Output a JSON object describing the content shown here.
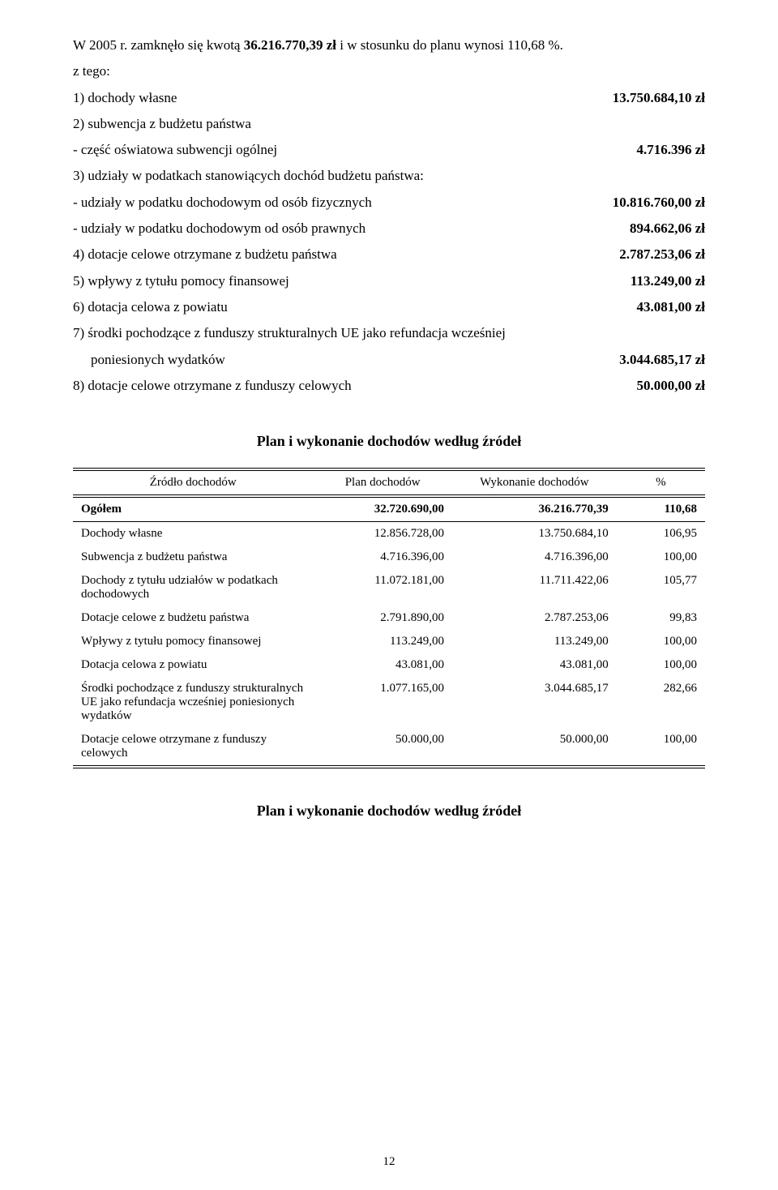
{
  "intro": {
    "line1_pre": "W 2005 r. zamknęło się kwotą ",
    "line1_bold": "36.216.770,39 zł",
    "line1_post": " i w stosunku do planu wynosi 110,68 %.",
    "line2": "z tego:"
  },
  "items": {
    "d1": {
      "label": "1) dochody własne",
      "value_bold": "13.750.684,10 zł"
    },
    "d2": {
      "label": "2) subwencja z budżetu państwa"
    },
    "d2a": {
      "label": "-   część oświatowa subwencji ogólnej",
      "value_bold": "4.716.396 zł"
    },
    "d3": {
      "label": "3) udziały w podatkach stanowiących dochód budżetu państwa:"
    },
    "d3a": {
      "label": "-   udziały w podatku dochodowym od osób fizycznych",
      "value_bold": "10.816.760,00 zł"
    },
    "d3b": {
      "label": "-   udziały w podatku dochodowym od osób prawnych",
      "value_bold": "894.662,06 zł"
    },
    "d4": {
      "label": "4) dotacje celowe otrzymane z budżetu państwa",
      "value_bold": "2.787.253,06 zł"
    },
    "d5": {
      "label": "5) wpływy z tytułu pomocy finansowej",
      "value_bold": "113.249,00 zł"
    },
    "d6": {
      "label": "6) dotacja celowa z powiatu",
      "value_bold": "43.081,00 zł"
    },
    "d7a": {
      "label": "7) środki pochodzące z funduszy strukturalnych UE jako refundacja wcześniej"
    },
    "d7b": {
      "label": "poniesionych wydatków",
      "value_bold": "3.044.685,17 zł"
    },
    "d8": {
      "label": "8) dotacje celowe otrzymane z funduszy celowych",
      "value_bold": "50.000,00 zł"
    }
  },
  "section_title": "Plan i wykonanie dochodów według źródeł",
  "table": {
    "headers": {
      "c1": "Źródło dochodów",
      "c2": "Plan dochodów",
      "c3": "Wykonanie dochodów",
      "c4": "%"
    },
    "total": {
      "label": "Ogółem",
      "plan": "32.720.690,00",
      "wyk": "36.216.770,39",
      "pct": "110,68"
    },
    "rows": {
      "r1": {
        "label": "Dochody własne",
        "plan": "12.856.728,00",
        "wyk": "13.750.684,10",
        "pct": "106,95"
      },
      "r2": {
        "label": "Subwencja z budżetu państwa",
        "plan": "4.716.396,00",
        "wyk": "4.716.396,00",
        "pct": "100,00"
      },
      "r3": {
        "label": "Dochody z tytułu udziałów w podatkach dochodowych",
        "plan": "11.072.181,00",
        "wyk": "11.711.422,06",
        "pct": "105,77"
      },
      "r4": {
        "label": "Dotacje celowe z budżetu państwa",
        "plan": "2.791.890,00",
        "wyk": "2.787.253,06",
        "pct": "99,83"
      },
      "r5": {
        "label": "Wpływy z tytułu pomocy finansowej",
        "plan": "113.249,00",
        "wyk": "113.249,00",
        "pct": "100,00"
      },
      "r6": {
        "label": "Dotacja celowa z powiatu",
        "plan": "43.081,00",
        "wyk": "43.081,00",
        "pct": "100,00"
      },
      "r7": {
        "label": "Środki pochodzące z funduszy strukturalnych UE jako refundacja wcześniej poniesionych wydatków",
        "plan": "1.077.165,00",
        "wyk": "3.044.685,17",
        "pct": "282,66"
      },
      "r8": {
        "label": "Dotacje celowe otrzymane z funduszy celowych",
        "plan": "50.000,00",
        "wyk": "50.000,00",
        "pct": "100,00"
      }
    }
  },
  "section_title_2": "Plan i wykonanie dochodów według źródeł",
  "page_number": "12",
  "table_col_widths": {
    "c1": "38%",
    "c2": "22%",
    "c3": "26%",
    "c4": "14%"
  }
}
